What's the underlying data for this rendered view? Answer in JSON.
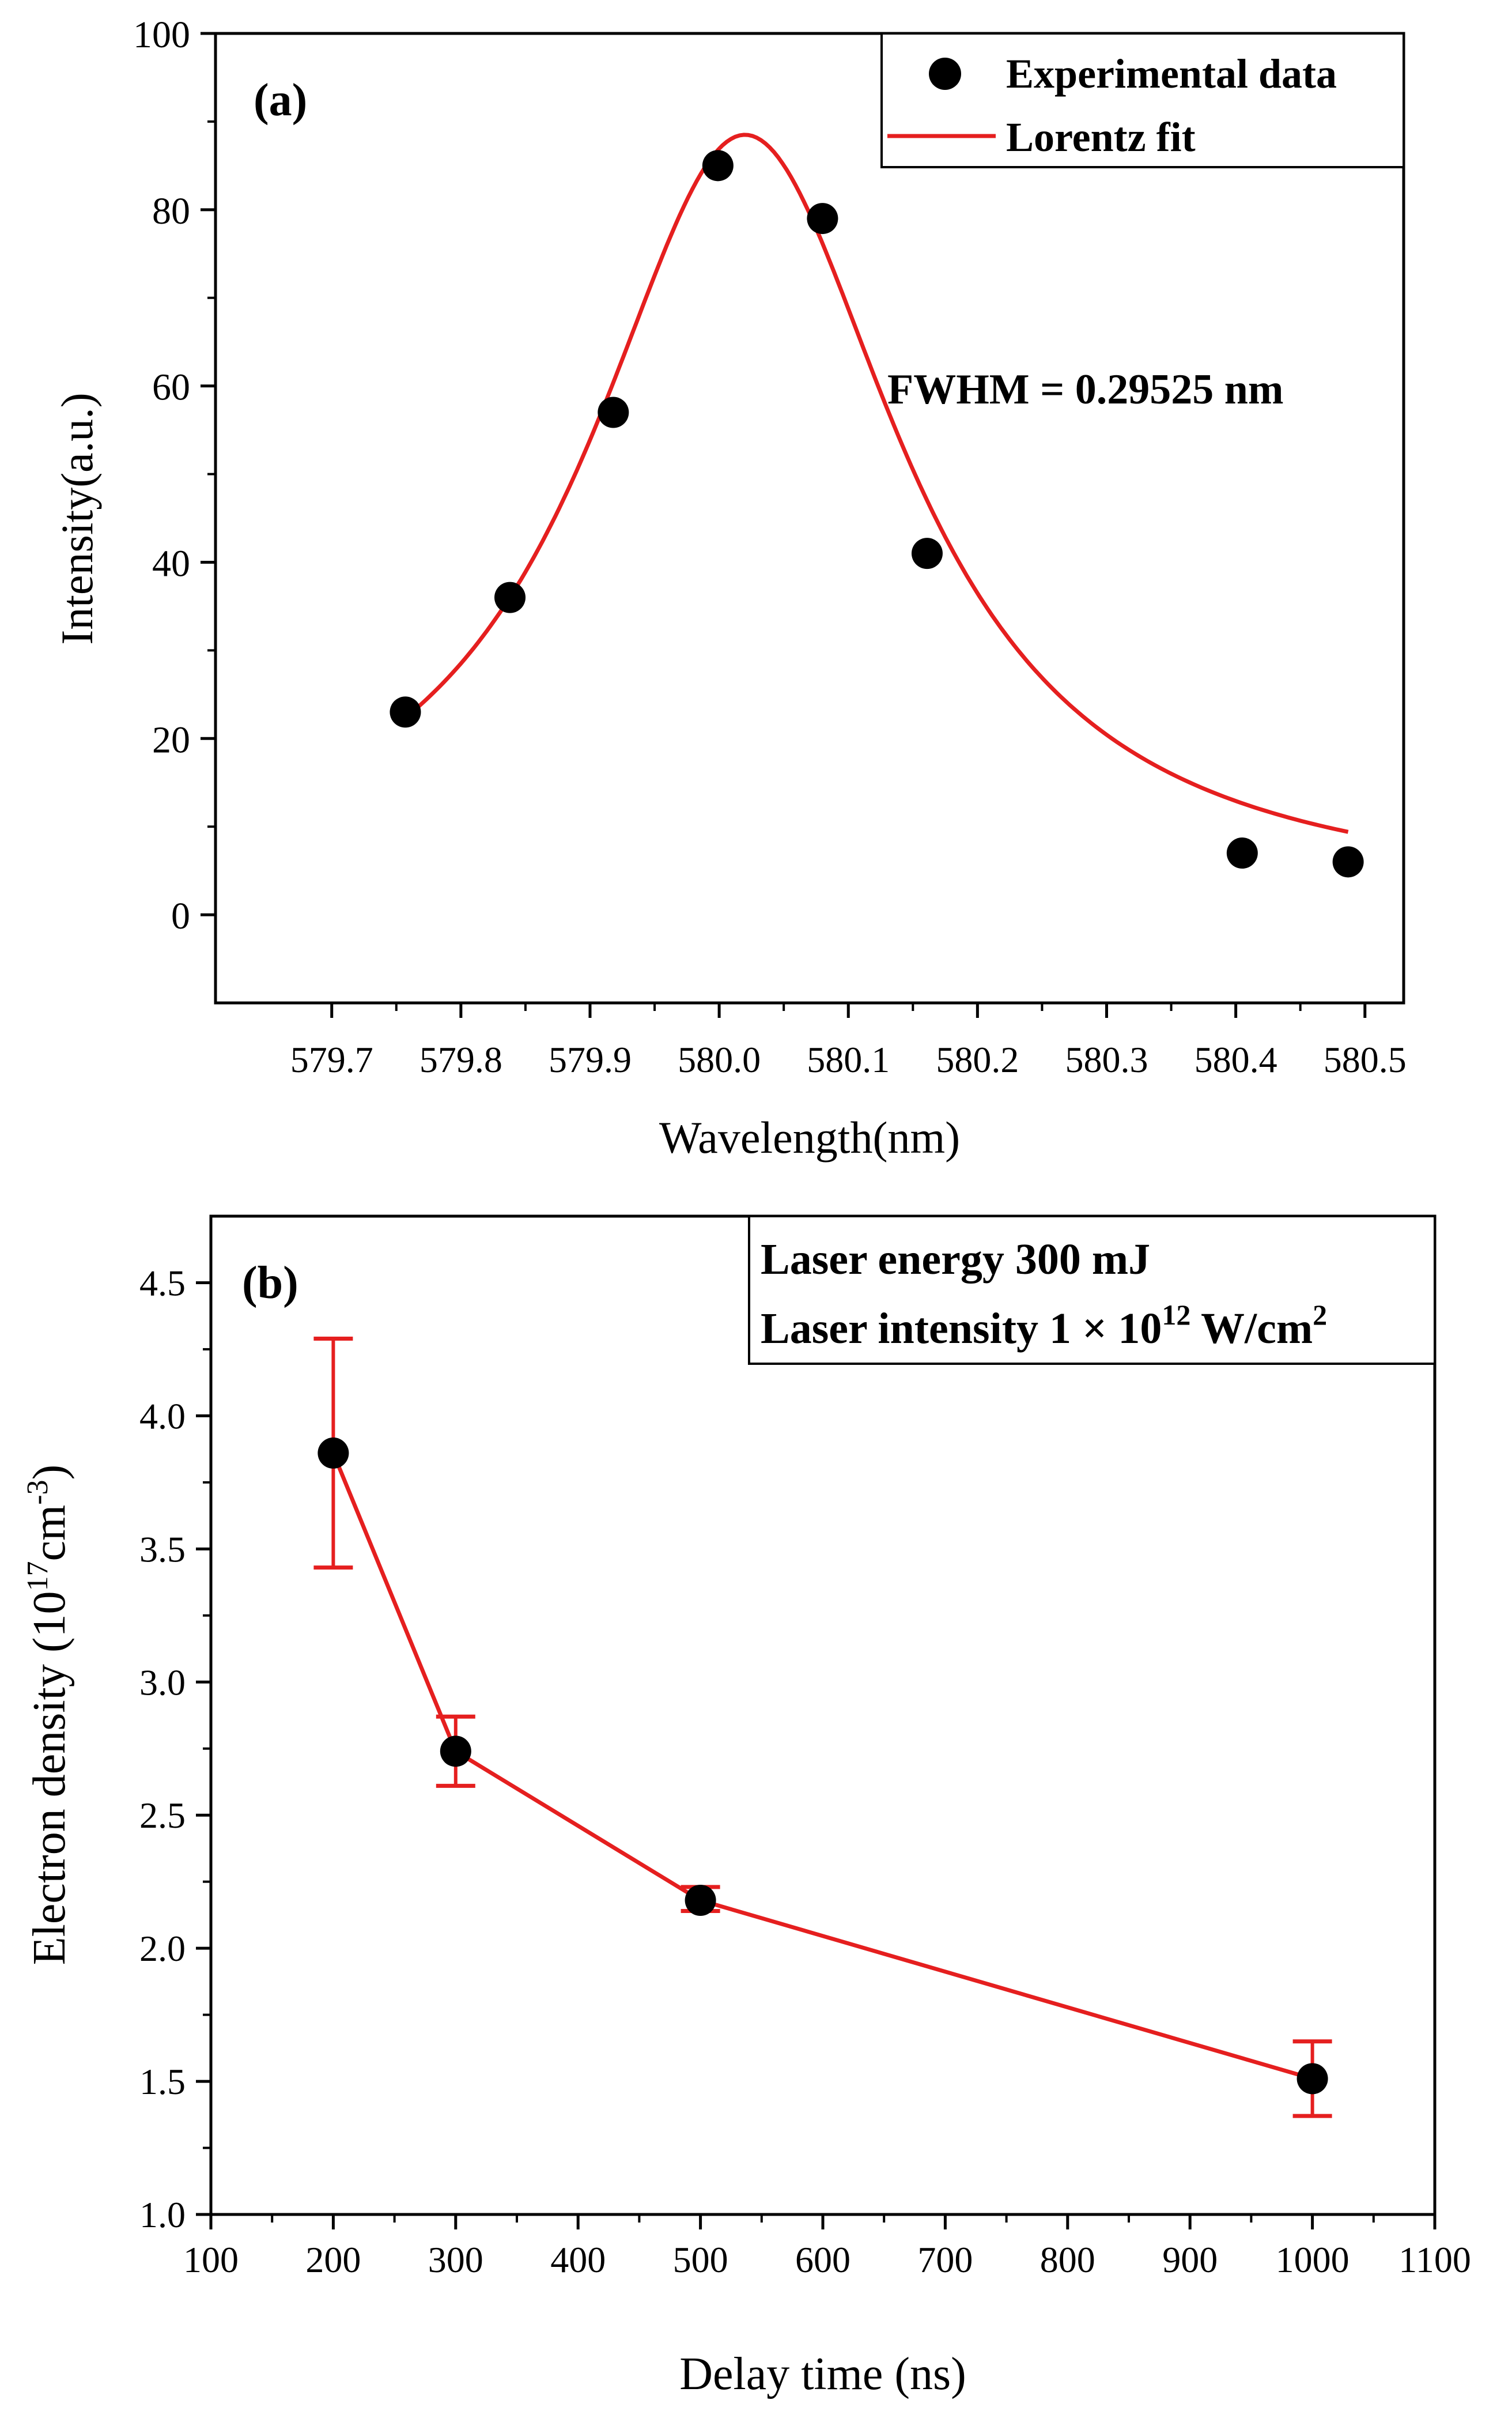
{
  "chart_data": [
    {
      "type": "scatter",
      "panel_label": "(a)",
      "title": "",
      "xlabel": "Wavelength(nm)",
      "ylabel": "Intensity(a.u.)",
      "xlim": [
        579.61,
        580.53
      ],
      "ylim": [
        -10,
        100
      ],
      "x_ticks": [
        579.7,
        579.8,
        579.9,
        580.0,
        580.1,
        580.2,
        580.3,
        580.4,
        580.5
      ],
      "x_tick_labels": [
        "579.7",
        "579.8",
        "579.9",
        "580.0",
        "580.1",
        "580.2",
        "580.3",
        "580.4",
        "580.5"
      ],
      "y_ticks": [
        0,
        20,
        40,
        60,
        80,
        100
      ],
      "y_tick_labels": [
        "0",
        "20",
        "40",
        "60",
        "80",
        "100"
      ],
      "series": [
        {
          "name": "Experimental data",
          "kind": "scatter",
          "color": "#000000",
          "x": [
            579.757,
            579.838,
            579.918,
            579.999,
            580.08,
            580.161,
            580.405,
            580.487
          ],
          "y": [
            23,
            36,
            57,
            85,
            79,
            41,
            7,
            6
          ]
        },
        {
          "name": "Lorentz fit",
          "kind": "line",
          "color": "#e51f1f",
          "model": {
            "function": "lorentz",
            "x_range": [
              579.757,
              580.487
            ],
            "y0": 1.5,
            "amplitude": 87,
            "xc": 580.02,
            "w": 0.29525
          }
        }
      ],
      "legend": {
        "position": "top-right",
        "entries": [
          "Experimental data",
          "Lorentz fit"
        ]
      },
      "annotations": [
        "FWHM = 0.29525 nm"
      ]
    },
    {
      "type": "line",
      "panel_label": "(b)",
      "title": "",
      "xlabel": "Delay time (ns)",
      "ylabel_main": "Electron density (10",
      "ylabel_exp1": "17",
      "ylabel_mid": "cm",
      "ylabel_exp2": "-3",
      "ylabel_end": ")",
      "xlim": [
        100,
        1100
      ],
      "ylim": [
        1.0,
        4.75
      ],
      "x_ticks": [
        100,
        200,
        300,
        400,
        500,
        600,
        700,
        800,
        900,
        1000,
        1100
      ],
      "x_tick_labels": [
        "100",
        "200",
        "300",
        "400",
        "500",
        "600",
        "700",
        "800",
        "900",
        "1000",
        "1100"
      ],
      "y_ticks": [
        1.0,
        1.5,
        2.0,
        2.5,
        3.0,
        3.5,
        4.0,
        4.5
      ],
      "y_tick_labels": [
        "1.0",
        "1.5",
        "2.0",
        "2.5",
        "3.0",
        "3.5",
        "4.0",
        "4.5"
      ],
      "series": [
        {
          "name": "Electron density",
          "color": "#e51f1f",
          "marker_color": "#000000",
          "x": [
            200,
            300,
            500,
            1000
          ],
          "y": [
            3.86,
            2.74,
            2.18,
            1.51
          ],
          "error_low": [
            3.43,
            2.61,
            2.14,
            1.37
          ],
          "error_high": [
            4.29,
            2.87,
            2.23,
            1.65
          ]
        }
      ],
      "legend": {
        "position": "top-right",
        "line1": "Laser energy 300 mJ",
        "line2_prefix": "Laser intensity 1 × 10",
        "line2_exp": "12",
        "line2_mid": " W/cm",
        "line2_exp2": "2"
      }
    }
  ]
}
